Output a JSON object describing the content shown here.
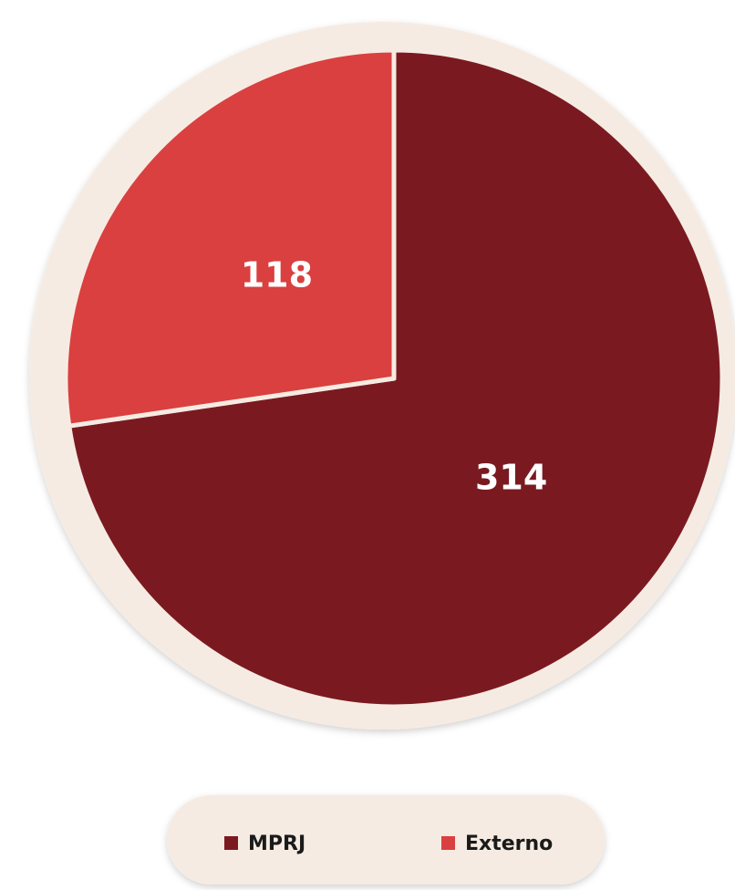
{
  "chart_data": {
    "type": "pie",
    "categories": [
      "MPRJ",
      "Externo"
    ],
    "values": [
      314,
      118
    ],
    "colors": [
      "#7a1a20",
      "#d9403f"
    ]
  }
}
